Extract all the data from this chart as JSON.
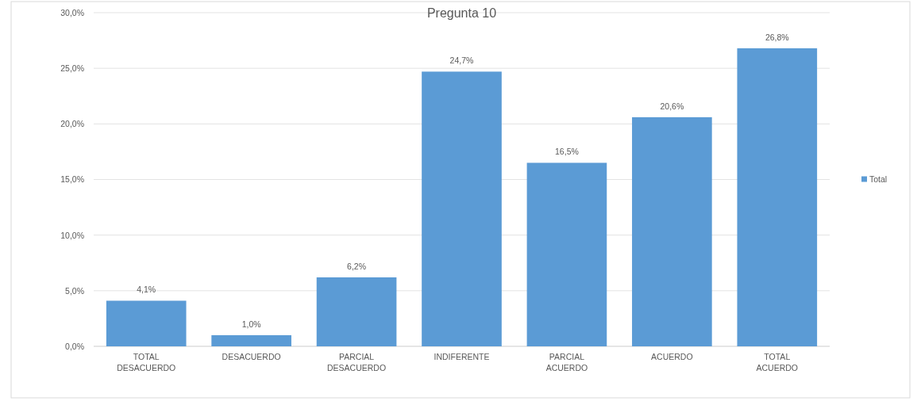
{
  "chart_data": {
    "type": "bar",
    "title": "Pregunta 10",
    "categories": [
      "TOTAL DESACUERDO",
      "DESACUERDO",
      "PARCIAL DESACUERDO",
      "INDIFERENTE",
      "PARCIAL ACUERDO",
      "ACUERDO",
      "TOTAL ACUERDO"
    ],
    "series": [
      {
        "name": "Total",
        "color": "#5b9bd5",
        "values": [
          4.1,
          1.0,
          6.2,
          24.7,
          16.5,
          20.6,
          26.8
        ],
        "value_labels": [
          "4,1%",
          "1,0%",
          "6,2%",
          "24,7%",
          "16,5%",
          "20,6%",
          "26,8%"
        ]
      }
    ],
    "ylim": [
      0,
      30
    ],
    "yticks": [
      {
        "value": 0,
        "label": "0,0%"
      },
      {
        "value": 5,
        "label": "5,0%"
      },
      {
        "value": 10,
        "label": "10,0%"
      },
      {
        "value": 15,
        "label": "15,0%"
      },
      {
        "value": 20,
        "label": "20,0%"
      },
      {
        "value": 25,
        "label": "25,0%"
      },
      {
        "value": 30,
        "label": "30,0%"
      }
    ],
    "grid": "y",
    "legend": "right"
  }
}
